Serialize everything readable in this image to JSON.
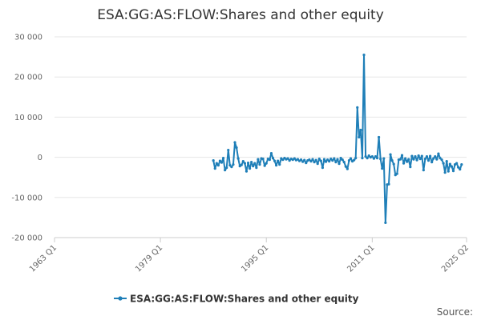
{
  "chart_data": {
    "type": "line",
    "title": "ESA:GG:AS:FLOW:Shares and other equity",
    "xlabel": "",
    "ylabel": "",
    "x_ticks": [
      "1963 Q1",
      "1979 Q1",
      "1995 Q1",
      "2011 Q1",
      "2025 Q2"
    ],
    "x_range": [
      "1963 Q1",
      "2025 Q2"
    ],
    "y_ticks": [
      "30 000",
      "20 000",
      "10 000",
      "0",
      "-10 000",
      "-20 000"
    ],
    "ylim": [
      -20000,
      30000
    ],
    "grid": true,
    "legend_position": "bottom",
    "series": [
      {
        "name": "ESA:GG:AS:FLOW:Shares and other equity",
        "color": "#1f7fb8",
        "points": [
          [
            "1987 Q1",
            -800
          ],
          [
            "1987 Q2",
            -2800
          ],
          [
            "1987 Q3",
            -1500
          ],
          [
            "1987 Q4",
            -2000
          ],
          [
            "1988 Q1",
            -900
          ],
          [
            "1988 Q2",
            -1300
          ],
          [
            "1988 Q3",
            -200
          ],
          [
            "1988 Q4",
            -3200
          ],
          [
            "1989 Q1",
            -2600
          ],
          [
            "1989 Q2",
            1800
          ],
          [
            "1989 Q3",
            -2000
          ],
          [
            "1989 Q4",
            -2400
          ],
          [
            "1990 Q1",
            -1800
          ],
          [
            "1990 Q2",
            3700
          ],
          [
            "1990 Q3",
            2400
          ],
          [
            "1990 Q4",
            -300
          ],
          [
            "1991 Q1",
            -2200
          ],
          [
            "1991 Q2",
            -1900
          ],
          [
            "1991 Q3",
            -1000
          ],
          [
            "1991 Q4",
            -1500
          ],
          [
            "1992 Q1",
            -3500
          ],
          [
            "1992 Q2",
            -1400
          ],
          [
            "1992 Q3",
            -2800
          ],
          [
            "1992 Q4",
            -1200
          ],
          [
            "1993 Q1",
            -2200
          ],
          [
            "1993 Q2",
            -1500
          ],
          [
            "1993 Q3",
            -2600
          ],
          [
            "1993 Q4",
            -500
          ],
          [
            "1994 Q1",
            -1800
          ],
          [
            "1994 Q2",
            -300
          ],
          [
            "1994 Q3",
            -400
          ],
          [
            "1994 Q4",
            -2100
          ],
          [
            "1995 Q1",
            -1500
          ],
          [
            "1995 Q2",
            -400
          ],
          [
            "1995 Q3",
            -600
          ],
          [
            "1995 Q4",
            1000
          ],
          [
            "1996 Q1",
            -200
          ],
          [
            "1996 Q2",
            -900
          ],
          [
            "1996 Q3",
            -2000
          ],
          [
            "1996 Q4",
            -900
          ],
          [
            "1997 Q1",
            -1800
          ],
          [
            "1997 Q2",
            -300
          ],
          [
            "1997 Q3",
            -600
          ],
          [
            "1997 Q4",
            -200
          ],
          [
            "1998 Q1",
            -500
          ],
          [
            "1998 Q2",
            -300
          ],
          [
            "1998 Q3",
            -800
          ],
          [
            "1998 Q4",
            -400
          ],
          [
            "1999 Q1",
            -600
          ],
          [
            "1999 Q2",
            -300
          ],
          [
            "1999 Q3",
            -700
          ],
          [
            "1999 Q4",
            -500
          ],
          [
            "2000 Q1",
            -900
          ],
          [
            "2000 Q2",
            -600
          ],
          [
            "2000 Q3",
            -1100
          ],
          [
            "2000 Q4",
            -700
          ],
          [
            "2001 Q1",
            -1400
          ],
          [
            "2001 Q2",
            -800
          ],
          [
            "2001 Q3",
            -600
          ],
          [
            "2001 Q4",
            -1000
          ],
          [
            "2002 Q1",
            -500
          ],
          [
            "2002 Q2",
            -1200
          ],
          [
            "2002 Q3",
            -700
          ],
          [
            "2002 Q4",
            -1600
          ],
          [
            "2003 Q1",
            -400
          ],
          [
            "2003 Q2",
            -900
          ],
          [
            "2003 Q3",
            -2600
          ],
          [
            "2003 Q4",
            -500
          ],
          [
            "2004 Q1",
            -1100
          ],
          [
            "2004 Q2",
            -600
          ],
          [
            "2004 Q3",
            -1000
          ],
          [
            "2004 Q4",
            -400
          ],
          [
            "2005 Q1",
            -800
          ],
          [
            "2005 Q2",
            -300
          ],
          [
            "2005 Q3",
            -1200
          ],
          [
            "2005 Q4",
            -500
          ],
          [
            "2006 Q1",
            -1600
          ],
          [
            "2006 Q2",
            -200
          ],
          [
            "2006 Q3",
            -600
          ],
          [
            "2006 Q4",
            -1200
          ],
          [
            "2007 Q1",
            -2300
          ],
          [
            "2007 Q2",
            -2900
          ],
          [
            "2007 Q3",
            -800
          ],
          [
            "2007 Q4",
            -300
          ],
          [
            "2008 Q1",
            -1000
          ],
          [
            "2008 Q2",
            -700
          ],
          [
            "2008 Q3",
            -200
          ],
          [
            "2008 Q4",
            12400
          ],
          [
            "2009 Q1",
            5000
          ],
          [
            "2009 Q2",
            6800
          ],
          [
            "2009 Q3",
            -200
          ],
          [
            "2009 Q4",
            25500
          ],
          [
            "2010 Q1",
            200
          ],
          [
            "2010 Q2",
            -200
          ],
          [
            "2010 Q3",
            400
          ],
          [
            "2010 Q4",
            0
          ],
          [
            "2011 Q1",
            200
          ],
          [
            "2011 Q2",
            -300
          ],
          [
            "2011 Q3",
            200
          ],
          [
            "2011 Q4",
            -200
          ],
          [
            "2012 Q1",
            5000
          ],
          [
            "2012 Q2",
            -400
          ],
          [
            "2012 Q3",
            -2800
          ],
          [
            "2012 Q4",
            -300
          ],
          [
            "2013 Q1",
            -16300
          ],
          [
            "2013 Q2",
            -6800
          ],
          [
            "2013 Q3",
            -6700
          ],
          [
            "2013 Q4",
            700
          ],
          [
            "2014 Q1",
            -800
          ],
          [
            "2014 Q2",
            -1700
          ],
          [
            "2014 Q3",
            -4400
          ],
          [
            "2014 Q4",
            -4100
          ],
          [
            "2015 Q1",
            -600
          ],
          [
            "2015 Q2",
            -500
          ],
          [
            "2015 Q3",
            500
          ],
          [
            "2015 Q4",
            -1500
          ],
          [
            "2016 Q1",
            -300
          ],
          [
            "2016 Q2",
            -1100
          ],
          [
            "2016 Q3",
            -500
          ],
          [
            "2016 Q4",
            -2400
          ],
          [
            "2017 Q1",
            300
          ],
          [
            "2017 Q2",
            -500
          ],
          [
            "2017 Q3",
            200
          ],
          [
            "2017 Q4",
            -700
          ],
          [
            "2018 Q1",
            400
          ],
          [
            "2018 Q2",
            -400
          ],
          [
            "2018 Q3",
            300
          ],
          [
            "2018 Q4",
            -3200
          ],
          [
            "2019 Q1",
            -400
          ],
          [
            "2019 Q2",
            200
          ],
          [
            "2019 Q3",
            -800
          ],
          [
            "2019 Q4",
            300
          ],
          [
            "2020 Q1",
            -1200
          ],
          [
            "2020 Q2",
            -300
          ],
          [
            "2020 Q3",
            200
          ],
          [
            "2020 Q4",
            -500
          ],
          [
            "2021 Q1",
            900
          ],
          [
            "2021 Q2",
            -200
          ],
          [
            "2021 Q3",
            -600
          ],
          [
            "2021 Q4",
            -1500
          ],
          [
            "2022 Q1",
            -3800
          ],
          [
            "2022 Q2",
            -1000
          ],
          [
            "2022 Q3",
            -3500
          ],
          [
            "2022 Q4",
            -1700
          ],
          [
            "2023 Q1",
            -2300
          ],
          [
            "2023 Q2",
            -3400
          ],
          [
            "2023 Q3",
            -1800
          ],
          [
            "2023 Q4",
            -1500
          ],
          [
            "2024 Q1",
            -2500
          ],
          [
            "2024 Q2",
            -3000
          ],
          [
            "2024 Q3",
            -1800
          ]
        ]
      }
    ]
  },
  "source_label": "Source:"
}
